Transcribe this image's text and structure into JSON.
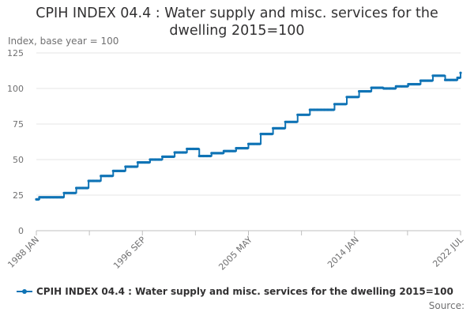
{
  "header": {
    "title_line1": "CPIH INDEX 04.4 : Water supply and misc. services for the",
    "title_line2": "dwelling 2015=100",
    "y_unit": "Index, base year = 100"
  },
  "footer": {
    "source": "Source:"
  },
  "chart_data": {
    "type": "line",
    "title": "CPIH INDEX 04.4 : Water supply and misc. services for the dwelling 2015=100",
    "ylabel": "Index, base year = 100",
    "xlabel": "",
    "ylim": [
      0,
      125
    ],
    "yticks": [
      0,
      25,
      50,
      75,
      100,
      125
    ],
    "xlim": [
      "1988 JAN",
      "2022 JUL"
    ],
    "x_tick_labels": [
      "1988 JAN",
      "1996 SEP",
      "2005 MAY",
      "2014 JAN",
      "2022 JUL"
    ],
    "grid": true,
    "legend_position": "bottom",
    "series": [
      {
        "name": "CPIH INDEX 04.4 : Water supply and misc. services for the dwelling 2015=100",
        "color": "#0f73b5",
        "frequency": "monthly, changes each April",
        "points": [
          [
            "1988 JAN",
            22.0
          ],
          [
            "1988 APR",
            23.5
          ],
          [
            "1990 APR",
            26.5
          ],
          [
            "1991 APR",
            30.0
          ],
          [
            "1992 APR",
            35.0
          ],
          [
            "1993 APR",
            38.5
          ],
          [
            "1994 APR",
            42.0
          ],
          [
            "1995 APR",
            45.0
          ],
          [
            "1996 APR",
            48.0
          ],
          [
            "1997 APR",
            50.0
          ],
          [
            "1998 APR",
            52.0
          ],
          [
            "1999 APR",
            55.0
          ],
          [
            "2000 APR",
            57.5
          ],
          [
            "2001 APR",
            52.5
          ],
          [
            "2002 APR",
            54.5
          ],
          [
            "2003 APR",
            56.0
          ],
          [
            "2004 APR",
            58.0
          ],
          [
            "2005 APR",
            61.0
          ],
          [
            "2006 APR",
            68.0
          ],
          [
            "2007 APR",
            72.0
          ],
          [
            "2008 APR",
            76.5
          ],
          [
            "2009 APR",
            81.5
          ],
          [
            "2010 APR",
            85.0
          ],
          [
            "2012 APR",
            89.0
          ],
          [
            "2013 APR",
            94.0
          ],
          [
            "2014 APR",
            98.0
          ],
          [
            "2015 APR",
            100.5
          ],
          [
            "2016 APR",
            100.0
          ],
          [
            "2017 APR",
            101.5
          ],
          [
            "2018 APR",
            103.0
          ],
          [
            "2019 APR",
            105.5
          ],
          [
            "2020 APR",
            109.0
          ],
          [
            "2021 APR",
            106.0
          ],
          [
            "2022 APR",
            107.5
          ],
          [
            "2022 JUL",
            111.0
          ]
        ]
      }
    ]
  }
}
